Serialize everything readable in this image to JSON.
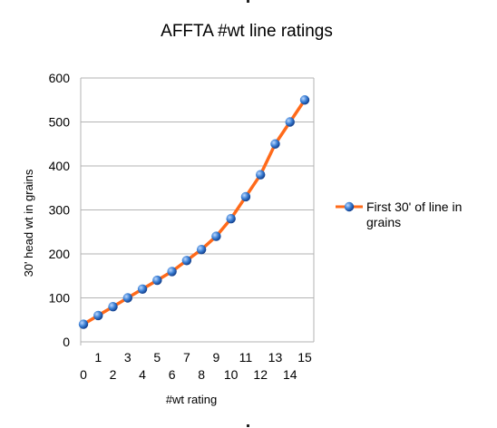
{
  "chart_data": {
    "type": "line",
    "title": "AFFTA #wt line ratings",
    "xlabel": "#wt rating",
    "ylabel": "30' head wt in grains",
    "x": [
      0,
      1,
      2,
      3,
      4,
      5,
      6,
      7,
      8,
      9,
      10,
      11,
      12,
      13,
      14,
      15
    ],
    "series": [
      {
        "name": "First 30' of line in grains",
        "values": [
          40,
          60,
          80,
          100,
          120,
          140,
          160,
          185,
          210,
          240,
          280,
          330,
          380,
          450,
          500,
          550
        ]
      }
    ],
    "ylim": [
      0,
      600
    ],
    "yticks": [
      0,
      100,
      200,
      300,
      400,
      500,
      600
    ],
    "grid": true,
    "legend": "right",
    "colors": {
      "line": "#ff6a1a",
      "marker": "#3b7fd4",
      "grid": "#b3b3b3",
      "axis": "#b3b3b3",
      "text": "#000000"
    }
  }
}
